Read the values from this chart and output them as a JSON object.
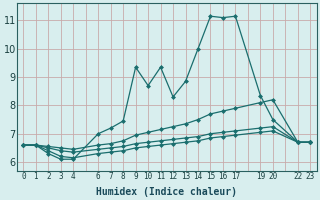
{
  "xlabel": "Humidex (Indice chaleur)",
  "background_color": "#d8eeee",
  "grid_color": "#c0dada",
  "line_color": "#1a6e6e",
  "xlim": [
    -0.5,
    23.5
  ],
  "ylim": [
    5.7,
    11.6
  ],
  "yticks": [
    6,
    7,
    8,
    9,
    10,
    11
  ],
  "xtick_labels": [
    "0",
    "1",
    "2",
    "3",
    "4",
    "",
    "6",
    "7",
    "8",
    "9",
    "10",
    "11",
    "12",
    "13",
    "14",
    "15",
    "16",
    "17",
    "",
    "19",
    "20",
    "",
    "22",
    "23"
  ],
  "xtick_positions": [
    0,
    1,
    2,
    3,
    4,
    5,
    6,
    7,
    8,
    9,
    10,
    11,
    12,
    13,
    14,
    15,
    16,
    17,
    18,
    19,
    20,
    21,
    22,
    23
  ],
  "series": [
    {
      "x": [
        0,
        1,
        2,
        3,
        4,
        6,
        7,
        8,
        9,
        10,
        11,
        12,
        13,
        14,
        15,
        16,
        17,
        19,
        20,
        22,
        23
      ],
      "y": [
        6.6,
        6.6,
        6.3,
        6.1,
        6.1,
        7.0,
        7.2,
        7.45,
        9.35,
        8.7,
        9.35,
        8.3,
        8.85,
        10.0,
        11.15,
        11.1,
        11.15,
        8.35,
        7.5,
        6.7,
        6.7
      ]
    },
    {
      "x": [
        0,
        1,
        2,
        3,
        4,
        6,
        7,
        8,
        9,
        10,
        11,
        12,
        13,
        14,
        15,
        16,
        17,
        19,
        20,
        22,
        23
      ],
      "y": [
        6.6,
        6.6,
        6.55,
        6.5,
        6.45,
        6.6,
        6.65,
        6.75,
        6.95,
        7.05,
        7.15,
        7.25,
        7.35,
        7.5,
        7.7,
        7.8,
        7.9,
        8.1,
        8.2,
        6.7,
        6.7
      ]
    },
    {
      "x": [
        0,
        1,
        2,
        3,
        4,
        6,
        7,
        8,
        9,
        10,
        11,
        12,
        13,
        14,
        15,
        16,
        17,
        19,
        20,
        22,
        23
      ],
      "y": [
        6.6,
        6.6,
        6.5,
        6.4,
        6.35,
        6.45,
        6.5,
        6.55,
        6.65,
        6.7,
        6.75,
        6.8,
        6.85,
        6.9,
        7.0,
        7.05,
        7.1,
        7.2,
        7.25,
        6.7,
        6.7
      ]
    },
    {
      "x": [
        0,
        1,
        2,
        3,
        4,
        6,
        7,
        8,
        9,
        10,
        11,
        12,
        13,
        14,
        15,
        16,
        17,
        19,
        20,
        22,
        23
      ],
      "y": [
        6.6,
        6.6,
        6.4,
        6.2,
        6.15,
        6.3,
        6.35,
        6.4,
        6.5,
        6.55,
        6.6,
        6.65,
        6.7,
        6.75,
        6.85,
        6.9,
        6.95,
        7.05,
        7.1,
        6.7,
        6.7
      ]
    }
  ]
}
